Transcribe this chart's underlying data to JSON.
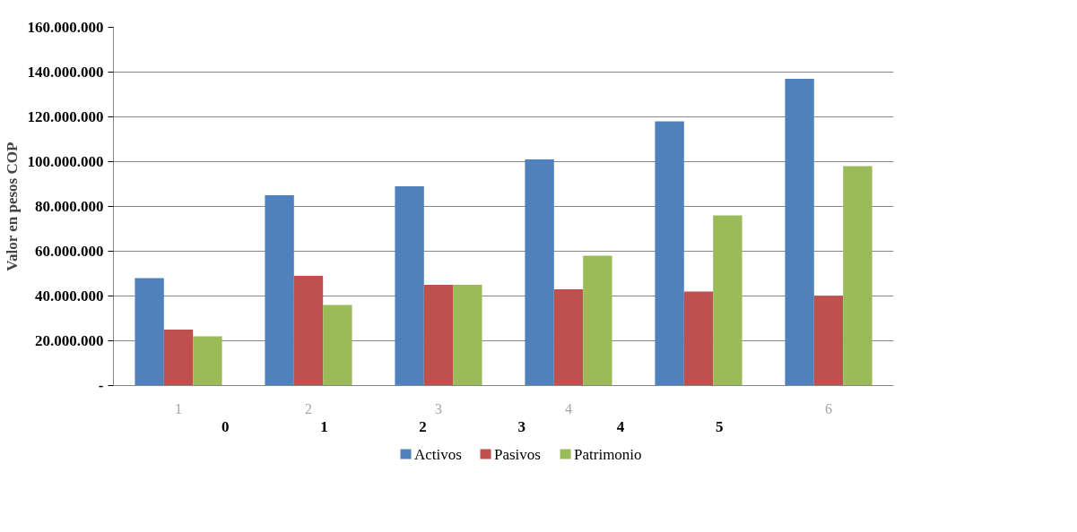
{
  "chart_data": {
    "type": "bar",
    "ylabel": "Valor en pesos COP",
    "categories": [
      "1",
      "2",
      "3",
      "4",
      null,
      "6"
    ],
    "series": [
      {
        "name": "Activos",
        "color": "#4f81bd",
        "values": [
          48000000,
          85000000,
          89000000,
          101000000,
          118000000,
          137000000
        ]
      },
      {
        "name": "Pasivos",
        "color": "#c0504d",
        "values": [
          25000000,
          49000000,
          45000000,
          43000000,
          42000000,
          40000000
        ]
      },
      {
        "name": "Patrimonio",
        "color": "#9bbb59",
        "values": [
          22000000,
          36000000,
          45000000,
          58000000,
          76000000,
          98000000
        ]
      }
    ],
    "ylim": [
      0,
      160000000
    ],
    "yticks": [
      {
        "value": 0,
        "label": "-"
      },
      {
        "value": 20000000,
        "label": "20.000.000"
      },
      {
        "value": 40000000,
        "label": "40.000.000"
      },
      {
        "value": 60000000,
        "label": "60.000.000"
      },
      {
        "value": 80000000,
        "label": "80.000.000"
      },
      {
        "value": 100000000,
        "label": "100.000.000"
      },
      {
        "value": 120000000,
        "label": "120.000.000"
      },
      {
        "value": 140000000,
        "label": "140.000.000"
      },
      {
        "value": 160000000,
        "label": "160.000.000"
      }
    ],
    "annotations": [
      "0",
      "1",
      "2",
      "3",
      "4",
      "5"
    ],
    "grid": "y",
    "legend": "bottom"
  }
}
